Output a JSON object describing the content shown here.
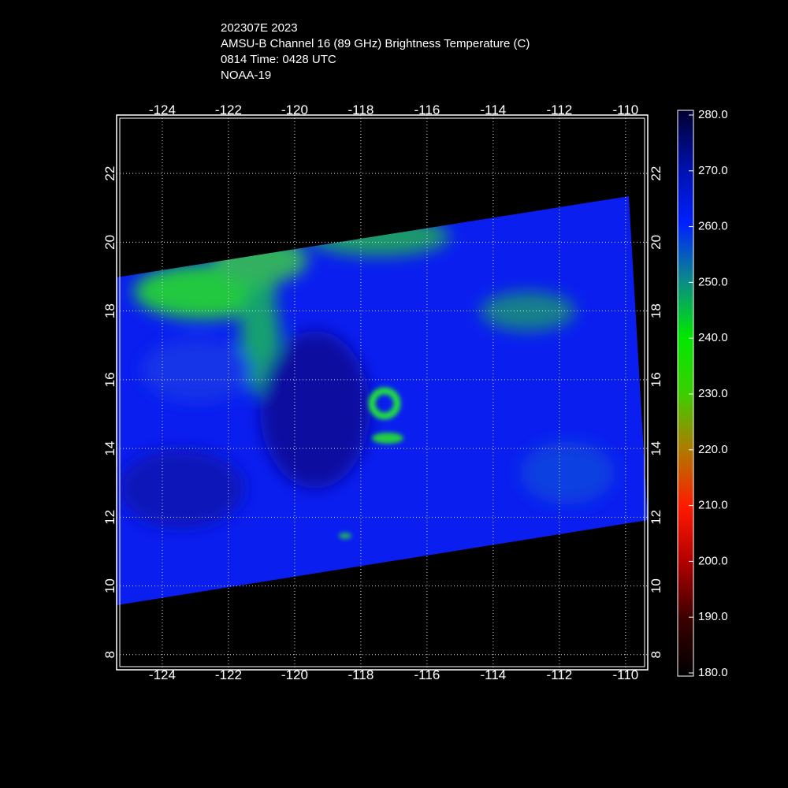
{
  "header": {
    "lines": [
      "202307E 2023",
      "AMSU-B Channel 16 (89 GHz) Brightness Temperature (C)",
      "0814 Time: 0428 UTC",
      "NOAA-19"
    ]
  },
  "map": {
    "lonlim": [
      -125.38,
      -109.33
    ],
    "latlim": [
      7.56,
      23.7
    ],
    "lonticks": [
      -124,
      -122,
      -120,
      -118,
      -116,
      -114,
      -112,
      -110
    ],
    "latticks": [
      8,
      10,
      12,
      14,
      16,
      18,
      20,
      22
    ],
    "grid": true
  },
  "colorbar": {
    "lim": [
      180,
      280
    ],
    "colors": [
      "#000000",
      "#3a0000",
      "#b00000",
      "#ff1a00",
      "#b07a00",
      "#3bd000",
      "#00e800",
      "#0a8a8a",
      "#0020ff",
      "#0010a8",
      "#000030"
    ],
    "ticks": [
      {
        "value": 280,
        "label": "280.0"
      },
      {
        "value": 270,
        "label": "270.0"
      },
      {
        "value": 260,
        "label": "260.0"
      },
      {
        "value": 250,
        "label": "250.0"
      },
      {
        "value": 240,
        "label": "240.0"
      },
      {
        "value": 230,
        "label": "230.0"
      },
      {
        "value": 220,
        "label": "220.0"
      },
      {
        "value": 210,
        "label": "210.0"
      },
      {
        "value": 200,
        "label": "200.0"
      },
      {
        "value": 190,
        "label": "190.0"
      },
      {
        "value": 180,
        "label": "180.0"
      }
    ]
  }
}
